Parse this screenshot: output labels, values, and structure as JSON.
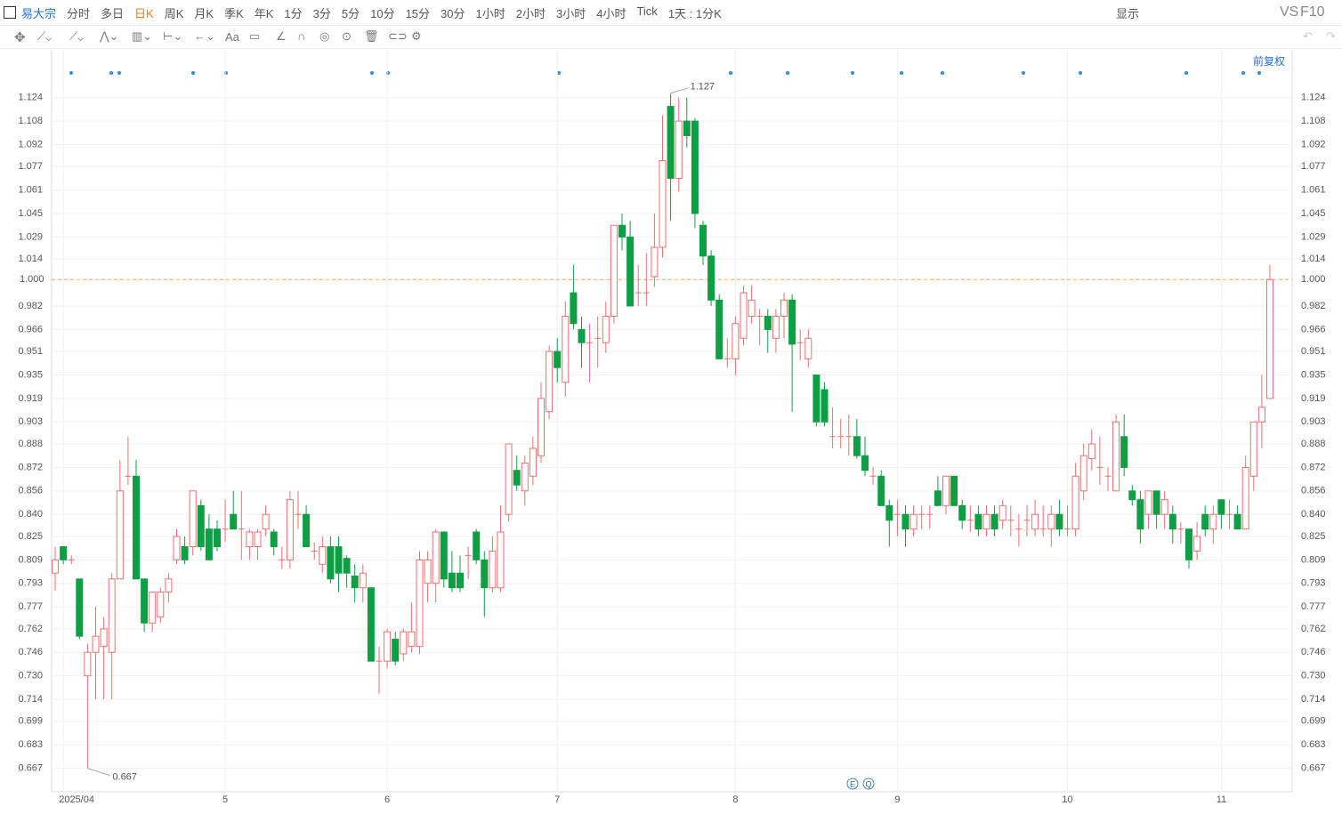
{
  "toolbar": {
    "symbol": "易大宗",
    "periods": [
      "分时",
      "多日",
      "日K",
      "周K",
      "月K",
      "季K",
      "年K",
      "1分",
      "3分",
      "5分",
      "10分",
      "15分",
      "30分",
      "1小时",
      "2小时",
      "3小时",
      "4小时",
      "Tick",
      "1天 : 1分K"
    ],
    "active": "日K",
    "display": "显示",
    "vs": "VS",
    "f10": "F10",
    "draw_text": "Aa",
    "adjust": "前复权",
    "events": [
      "E",
      "Q"
    ]
  },
  "chart_data": {
    "type": "candlestick",
    "up_color": "#ee6e6e",
    "down_color": "#0e9f45",
    "grid": true,
    "ylim": [
      0.651,
      1.142
    ],
    "yticks": [
      {
        "value": 1.124,
        "label": "1.124"
      },
      {
        "value": 1.108,
        "label": "1.108"
      },
      {
        "value": 1.092,
        "label": "1.092"
      },
      {
        "value": 1.077,
        "label": "1.077"
      },
      {
        "value": 1.061,
        "label": "1.061"
      },
      {
        "value": 1.045,
        "label": "1.045"
      },
      {
        "value": 1.029,
        "label": "1.029"
      },
      {
        "value": 1.014,
        "label": "1.014"
      },
      {
        "value": 0.982,
        "label": "0.982"
      },
      {
        "value": 0.966,
        "label": "0.966"
      },
      {
        "value": 0.951,
        "label": "0.951"
      },
      {
        "value": 0.935,
        "label": "0.935"
      },
      {
        "value": 0.919,
        "label": "0.919"
      },
      {
        "value": 0.903,
        "label": "0.903"
      },
      {
        "value": 0.888,
        "label": "0.888"
      },
      {
        "value": 0.872,
        "label": "0.872"
      },
      {
        "value": 0.856,
        "label": "0.856"
      },
      {
        "value": 0.84,
        "label": "0.840"
      },
      {
        "value": 0.825,
        "label": "0.825"
      },
      {
        "value": 0.809,
        "label": "0.809"
      },
      {
        "value": 0.793,
        "label": "0.793"
      },
      {
        "value": 0.777,
        "label": "0.777"
      },
      {
        "value": 0.762,
        "label": "0.762"
      },
      {
        "value": 0.746,
        "label": "0.746"
      },
      {
        "value": 0.73,
        "label": "0.730"
      },
      {
        "value": 0.714,
        "label": "0.714"
      },
      {
        "value": 0.699,
        "label": "0.699"
      },
      {
        "value": 0.683,
        "label": "0.683"
      },
      {
        "value": 0.667,
        "label": "0.667"
      }
    ],
    "last_price": {
      "value": 1,
      "label": "1.000"
    },
    "high_mark": 1.127,
    "low_mark": 0.667,
    "categories": [
      null,
      "2025/04",
      null,
      null,
      null,
      null,
      null,
      null,
      null,
      null,
      null,
      null,
      null,
      null,
      null,
      null,
      null,
      null,
      null,
      null,
      null,
      "5",
      null,
      null,
      null,
      null,
      null,
      null,
      null,
      null,
      null,
      null,
      null,
      null,
      null,
      null,
      null,
      null,
      null,
      null,
      null,
      "6",
      null,
      null,
      null,
      null,
      null,
      null,
      null,
      null,
      null,
      null,
      null,
      null,
      null,
      null,
      null,
      null,
      null,
      null,
      null,
      null,
      "7",
      null,
      null,
      null,
      null,
      null,
      null,
      null,
      null,
      null,
      null,
      null,
      null,
      null,
      null,
      null,
      null,
      null,
      null,
      null,
      null,
      null,
      "8",
      null,
      null,
      null,
      null,
      null,
      null,
      null,
      null,
      null,
      null,
      null,
      null,
      null,
      null,
      null,
      null,
      null,
      null,
      null,
      "9",
      null,
      null,
      null,
      null,
      null,
      null,
      null,
      null,
      null,
      null,
      null,
      null,
      null,
      null,
      null,
      null,
      null,
      null,
      null,
      null,
      "10",
      null,
      null,
      null,
      null,
      null,
      null,
      null,
      null,
      null,
      null,
      null,
      null,
      null,
      null,
      null,
      null,
      null,
      null,
      "11",
      null,
      null,
      null
    ],
    "candles": [
      [
        0.8,
        0.818,
        0.788,
        0.809
      ],
      [
        0.818,
        0.818,
        0.806,
        0.809
      ],
      [
        0.809,
        0.812,
        0.806,
        0.809
      ],
      [
        0.796,
        0.796,
        0.755,
        0.757
      ],
      [
        0.73,
        0.752,
        0.667,
        0.746
      ],
      [
        0.746,
        0.777,
        0.714,
        0.757
      ],
      [
        0.75,
        0.77,
        0.714,
        0.762
      ],
      [
        0.746,
        0.8,
        0.714,
        0.796
      ],
      [
        0.796,
        0.877,
        0.796,
        0.856
      ],
      [
        0.866,
        0.893,
        0.86,
        0.866
      ],
      [
        0.866,
        0.877,
        0.796,
        0.796
      ],
      [
        0.796,
        0.796,
        0.76,
        0.766
      ],
      [
        0.766,
        0.787,
        0.76,
        0.787
      ],
      [
        0.77,
        0.79,
        0.766,
        0.787
      ],
      [
        0.787,
        0.8,
        0.78,
        0.796
      ],
      [
        0.809,
        0.83,
        0.806,
        0.825
      ],
      [
        0.818,
        0.825,
        0.806,
        0.809
      ],
      [
        0.818,
        0.856,
        0.812,
        0.856
      ],
      [
        0.846,
        0.85,
        0.815,
        0.818
      ],
      [
        0.83,
        0.84,
        0.809,
        0.809
      ],
      [
        0.83,
        0.836,
        0.815,
        0.818
      ],
      [
        0.83,
        0.85,
        0.821,
        0.83
      ],
      [
        0.84,
        0.856,
        0.83,
        0.83
      ],
      [
        0.83,
        0.856,
        0.809,
        0.83
      ],
      [
        0.818,
        0.83,
        0.809,
        0.828
      ],
      [
        0.818,
        0.83,
        0.809,
        0.828
      ],
      [
        0.83,
        0.846,
        0.825,
        0.84
      ],
      [
        0.828,
        0.83,
        0.812,
        0.818
      ],
      [
        0.809,
        0.818,
        0.803,
        0.809
      ],
      [
        0.809,
        0.856,
        0.803,
        0.85
      ],
      [
        0.84,
        0.856,
        0.83,
        0.84
      ],
      [
        0.84,
        0.846,
        0.818,
        0.818
      ],
      [
        0.815,
        0.821,
        0.809,
        0.815
      ],
      [
        0.806,
        0.825,
        0.8,
        0.818
      ],
      [
        0.818,
        0.825,
        0.793,
        0.796
      ],
      [
        0.818,
        0.825,
        0.787,
        0.8
      ],
      [
        0.81,
        0.812,
        0.79,
        0.8
      ],
      [
        0.798,
        0.806,
        0.78,
        0.79
      ],
      [
        0.79,
        0.806,
        0.78,
        0.8
      ],
      [
        0.79,
        0.79,
        0.74,
        0.74
      ],
      [
        0.74,
        0.75,
        0.718,
        0.74
      ],
      [
        0.74,
        0.762,
        0.735,
        0.76
      ],
      [
        0.755,
        0.76,
        0.737,
        0.74
      ],
      [
        0.745,
        0.762,
        0.74,
        0.76
      ],
      [
        0.75,
        0.78,
        0.746,
        0.76
      ],
      [
        0.75,
        0.815,
        0.745,
        0.809
      ],
      [
        0.793,
        0.815,
        0.78,
        0.809
      ],
      [
        0.793,
        0.83,
        0.78,
        0.828
      ],
      [
        0.828,
        0.828,
        0.79,
        0.796
      ],
      [
        0.8,
        0.815,
        0.787,
        0.79
      ],
      [
        0.8,
        0.812,
        0.787,
        0.79
      ],
      [
        0.812,
        0.818,
        0.796,
        0.812
      ],
      [
        0.828,
        0.83,
        0.806,
        0.809
      ],
      [
        0.809,
        0.815,
        0.77,
        0.79
      ],
      [
        0.79,
        0.825,
        0.787,
        0.815
      ],
      [
        0.79,
        0.846,
        0.787,
        0.828
      ],
      [
        0.84,
        0.888,
        0.835,
        0.888
      ],
      [
        0.87,
        0.88,
        0.856,
        0.86
      ],
      [
        0.856,
        0.88,
        0.846,
        0.875
      ],
      [
        0.866,
        0.893,
        0.86,
        0.885
      ],
      [
        0.88,
        0.93,
        0.875,
        0.919
      ],
      [
        0.91,
        0.955,
        0.905,
        0.951
      ],
      [
        0.951,
        0.96,
        0.93,
        0.94
      ],
      [
        0.93,
        0.985,
        0.92,
        0.975
      ],
      [
        0.991,
        1.01,
        0.966,
        0.97
      ],
      [
        0.966,
        0.975,
        0.94,
        0.957
      ],
      [
        0.957,
        0.97,
        0.93,
        0.957
      ],
      [
        0.96,
        0.975,
        0.94,
        0.96
      ],
      [
        0.957,
        0.985,
        0.95,
        0.975
      ],
      [
        0.975,
        1.037,
        0.97,
        1.037
      ],
      [
        1.037,
        1.045,
        1.02,
        1.029
      ],
      [
        1.029,
        1.04,
        0.982,
        0.982
      ],
      [
        0.991,
        1.01,
        0.982,
        0.991
      ],
      [
        0.991,
        1.018,
        0.982,
        0.991
      ],
      [
        1.002,
        1.045,
        0.995,
        1.022
      ],
      [
        1.022,
        1.112,
        1.015,
        1.081
      ],
      [
        1.118,
        1.127,
        1.04,
        1.069
      ],
      [
        1.069,
        1.124,
        1.06,
        1.108
      ],
      [
        1.108,
        1.124,
        1.09,
        1.098
      ],
      [
        1.108,
        1.11,
        1.035,
        1.045
      ],
      [
        1.037,
        1.04,
        1.01,
        1.016
      ],
      [
        1.016,
        1.02,
        0.982,
        0.986
      ],
      [
        0.986,
        0.99,
        0.946,
        0.946
      ],
      [
        0.946,
        0.96,
        0.94,
        0.946
      ],
      [
        0.946,
        0.975,
        0.935,
        0.97
      ],
      [
        0.96,
        0.996,
        0.955,
        0.991
      ],
      [
        0.975,
        0.996,
        0.97,
        0.986
      ],
      [
        0.975,
        0.98,
        0.955,
        0.975
      ],
      [
        0.975,
        0.98,
        0.95,
        0.966
      ],
      [
        0.96,
        0.98,
        0.95,
        0.975
      ],
      [
        0.975,
        0.991,
        0.96,
        0.986
      ],
      [
        0.986,
        0.99,
        0.91,
        0.956
      ],
      [
        0.957,
        0.966,
        0.945,
        0.957
      ],
      [
        0.946,
        0.966,
        0.94,
        0.96
      ],
      [
        0.935,
        0.935,
        0.9,
        0.903
      ],
      [
        0.925,
        0.93,
        0.9,
        0.903
      ],
      [
        0.893,
        0.913,
        0.885,
        0.893
      ],
      [
        0.893,
        0.905,
        0.885,
        0.893
      ],
      [
        0.893,
        0.908,
        0.88,
        0.893
      ],
      [
        0.893,
        0.905,
        0.878,
        0.88
      ],
      [
        0.88,
        0.893,
        0.866,
        0.87
      ],
      [
        0.866,
        0.872,
        0.86,
        0.866
      ],
      [
        0.866,
        0.87,
        0.846,
        0.846
      ],
      [
        0.846,
        0.85,
        0.818,
        0.836
      ],
      [
        0.84,
        0.85,
        0.825,
        0.84
      ],
      [
        0.84,
        0.846,
        0.818,
        0.83
      ],
      [
        0.83,
        0.846,
        0.825,
        0.84
      ],
      [
        0.84,
        0.846,
        0.83,
        0.84
      ],
      [
        0.84,
        0.846,
        0.83,
        0.84
      ],
      [
        0.856,
        0.866,
        0.846,
        0.846
      ],
      [
        0.846,
        0.866,
        0.84,
        0.866
      ],
      [
        0.866,
        0.866,
        0.846,
        0.846
      ],
      [
        0.846,
        0.85,
        0.83,
        0.836
      ],
      [
        0.836,
        0.846,
        0.828,
        0.836
      ],
      [
        0.84,
        0.846,
        0.825,
        0.83
      ],
      [
        0.83,
        0.846,
        0.825,
        0.84
      ],
      [
        0.84,
        0.846,
        0.825,
        0.83
      ],
      [
        0.836,
        0.85,
        0.83,
        0.846
      ],
      [
        0.836,
        0.846,
        0.825,
        0.836
      ],
      [
        0.83,
        0.84,
        0.818,
        0.83
      ],
      [
        0.836,
        0.846,
        0.825,
        0.836
      ],
      [
        0.83,
        0.85,
        0.825,
        0.84
      ],
      [
        0.83,
        0.846,
        0.825,
        0.83
      ],
      [
        0.83,
        0.846,
        0.818,
        0.84
      ],
      [
        0.84,
        0.85,
        0.825,
        0.83
      ],
      [
        0.83,
        0.846,
        0.825,
        0.83
      ],
      [
        0.83,
        0.875,
        0.825,
        0.866
      ],
      [
        0.856,
        0.888,
        0.85,
        0.88
      ],
      [
        0.878,
        0.898,
        0.87,
        0.888
      ],
      [
        0.872,
        0.893,
        0.86,
        0.872
      ],
      [
        0.866,
        0.872,
        0.856,
        0.866
      ],
      [
        0.856,
        0.908,
        0.856,
        0.903
      ],
      [
        0.893,
        0.908,
        0.866,
        0.872
      ],
      [
        0.856,
        0.86,
        0.846,
        0.85
      ],
      [
        0.85,
        0.856,
        0.82,
        0.83
      ],
      [
        0.84,
        0.856,
        0.83,
        0.856
      ],
      [
        0.856,
        0.856,
        0.83,
        0.84
      ],
      [
        0.84,
        0.856,
        0.83,
        0.85
      ],
      [
        0.84,
        0.846,
        0.82,
        0.83
      ],
      [
        0.83,
        0.835,
        0.82,
        0.83
      ],
      [
        0.83,
        0.83,
        0.803,
        0.809
      ],
      [
        0.815,
        0.835,
        0.809,
        0.825
      ],
      [
        0.84,
        0.846,
        0.825,
        0.83
      ],
      [
        0.83,
        0.846,
        0.82,
        0.84
      ],
      [
        0.85,
        0.85,
        0.83,
        0.84
      ],
      [
        0.84,
        0.85,
        0.83,
        0.84
      ],
      [
        0.84,
        0.846,
        0.83,
        0.83
      ],
      [
        0.83,
        0.88,
        0.83,
        0.872
      ],
      [
        0.866,
        0.903,
        0.856,
        0.903
      ],
      [
        0.903,
        0.935,
        0.885,
        0.913
      ],
      [
        0.919,
        1.01,
        0.919,
        1.0
      ]
    ]
  }
}
